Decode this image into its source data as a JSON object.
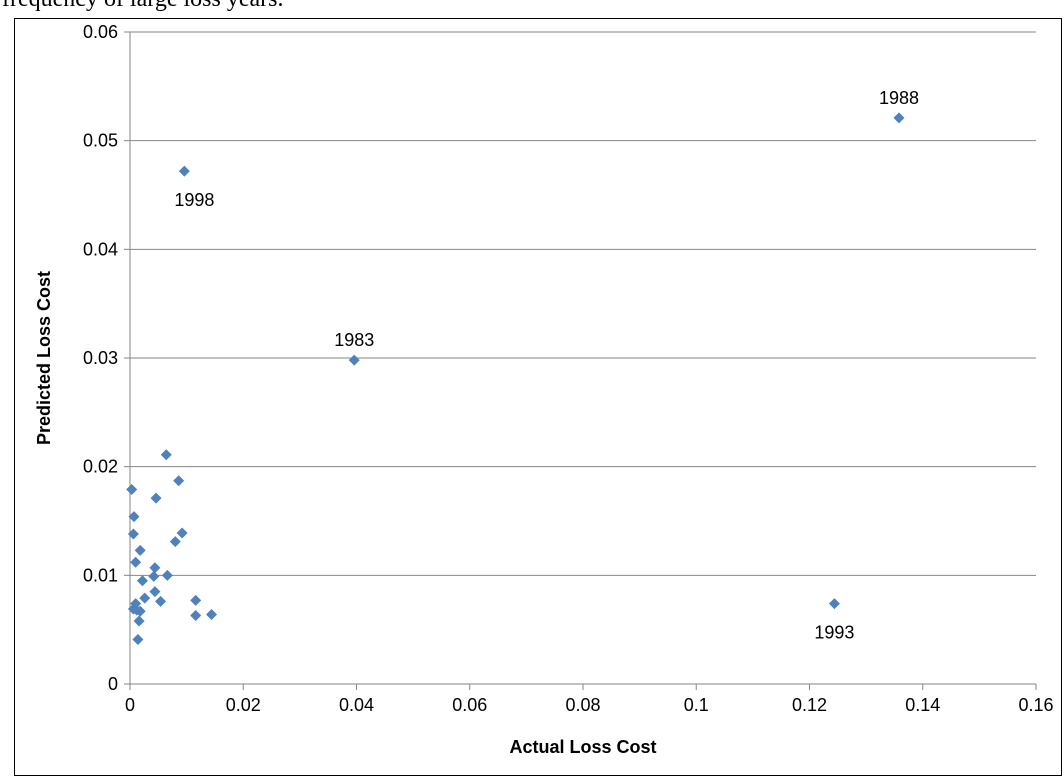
{
  "header_text": "frequency of large loss years.",
  "chart_data": {
    "type": "scatter",
    "title": "",
    "xlabel": "Actual Loss Cost",
    "ylabel": "Predicted Loss Cost",
    "xlim": [
      0,
      0.16
    ],
    "ylim": [
      0,
      0.06
    ],
    "x_ticks": [
      0,
      0.02,
      0.04,
      0.06,
      0.08,
      0.1,
      0.12,
      0.14,
      0.16
    ],
    "y_ticks": [
      0,
      0.01,
      0.02,
      0.03,
      0.04,
      0.05,
      0.06
    ],
    "grid": "horizontal major gridlines",
    "legend": "none",
    "marker": "diamond",
    "marker_color": "#4f81bd",
    "points": [
      {
        "x": 0.1358,
        "y": 0.0521,
        "label": "1988"
      },
      {
        "x": 0.0096,
        "y": 0.0472,
        "label": "1998"
      },
      {
        "x": 0.0396,
        "y": 0.0298,
        "label": "1983"
      },
      {
        "x": 0.1244,
        "y": 0.0074,
        "label": "1993"
      },
      {
        "x": 0.0003,
        "y": 0.0179
      },
      {
        "x": 0.0007,
        "y": 0.0154
      },
      {
        "x": 0.0006,
        "y": 0.0138
      },
      {
        "x": 0.0018,
        "y": 0.0123
      },
      {
        "x": 0.001,
        "y": 0.0112
      },
      {
        "x": 0.0064,
        "y": 0.0211
      },
      {
        "x": 0.0086,
        "y": 0.0187
      },
      {
        "x": 0.0046,
        "y": 0.0171
      },
      {
        "x": 0.0092,
        "y": 0.0139
      },
      {
        "x": 0.008,
        "y": 0.0131
      },
      {
        "x": 0.0044,
        "y": 0.0107
      },
      {
        "x": 0.0042,
        "y": 0.0099
      },
      {
        "x": 0.0066,
        "y": 0.01
      },
      {
        "x": 0.0022,
        "y": 0.0095
      },
      {
        "x": 0.0044,
        "y": 0.0085
      },
      {
        "x": 0.0026,
        "y": 0.0079
      },
      {
        "x": 0.0054,
        "y": 0.0076
      },
      {
        "x": 0.001,
        "y": 0.0074
      },
      {
        "x": 0.0006,
        "y": 0.0069
      },
      {
        "x": 0.0012,
        "y": 0.0068
      },
      {
        "x": 0.0018,
        "y": 0.0067
      },
      {
        "x": 0.0016,
        "y": 0.0058
      },
      {
        "x": 0.0014,
        "y": 0.0041
      },
      {
        "x": 0.0116,
        "y": 0.0077
      },
      {
        "x": 0.0116,
        "y": 0.0063
      },
      {
        "x": 0.0144,
        "y": 0.0064
      }
    ]
  }
}
